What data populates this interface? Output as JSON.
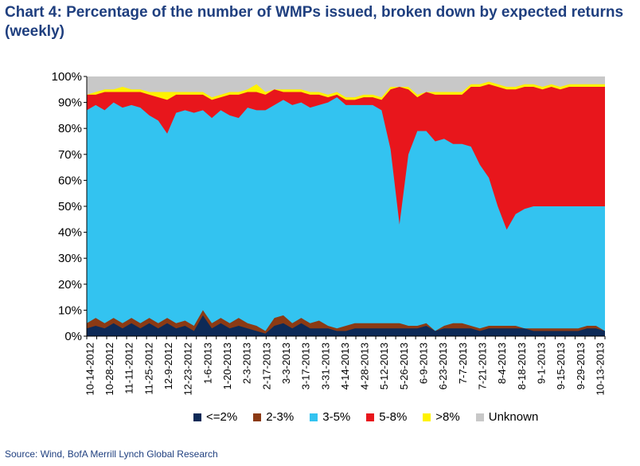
{
  "chart_data": {
    "type": "area",
    "title": "Chart 4: Percentage of the number of WMPs issued, broken down by expected returns (weekly)",
    "source": "Source: Wind, BofA Merrill Lynch Global Research",
    "ylim": [
      0,
      100
    ],
    "y_ticks": [
      "0%",
      "10%",
      "20%",
      "30%",
      "40%",
      "50%",
      "60%",
      "70%",
      "80%",
      "90%",
      "100%"
    ],
    "x_tick_labels": [
      "10-14-2012",
      "10-28-2012",
      "11-11-2012",
      "11-25-2012",
      "12-9-2012",
      "12-23-2012",
      "1-6-2013",
      "1-20-2013",
      "2-3-2013",
      "2-17-2013",
      "3-3-2013",
      "3-17-2013",
      "3-31-2013",
      "4-14-2013",
      "4-28-2013",
      "5-12-2013",
      "5-26-2013",
      "6-9-2013",
      "6-23-2013",
      "7-7-2013",
      "7-21-2013",
      "8-4-2013",
      "8-18-2013",
      "9-1-2013",
      "9-15-2013",
      "9-29-2013",
      "10-13-2013"
    ],
    "stacked_totals": {
      "lte2": [
        3,
        4,
        3,
        5,
        3,
        5,
        3,
        5,
        3,
        5,
        3,
        4,
        2,
        8,
        3,
        5,
        3,
        4,
        3,
        2,
        1,
        4,
        5,
        3,
        5,
        3,
        3,
        3,
        2,
        2,
        3,
        3,
        3,
        3,
        3,
        3,
        3,
        3,
        4,
        2,
        3,
        3,
        3,
        3,
        2,
        3,
        3,
        3,
        3,
        3,
        2,
        2,
        2,
        2,
        2,
        2,
        3,
        3,
        2
      ],
      "lte3": [
        5,
        7,
        5,
        7,
        5,
        7,
        5,
        7,
        5,
        7,
        5,
        6,
        4,
        10,
        5,
        7,
        5,
        7,
        5,
        4,
        2,
        7,
        8,
        5,
        7,
        5,
        6,
        4,
        3,
        4,
        5,
        5,
        5,
        5,
        5,
        5,
        4,
        4,
        5,
        2,
        4,
        5,
        5,
        4,
        3,
        4,
        4,
        4,
        4,
        3,
        3,
        3,
        3,
        3,
        3,
        3,
        4,
        4,
        2
      ],
      "lte5": [
        87,
        89,
        87,
        90,
        88,
        89,
        88,
        85,
        83,
        78,
        86,
        87,
        86,
        87,
        84,
        87,
        85,
        84,
        88,
        87,
        87,
        89,
        91,
        89,
        90,
        88,
        89,
        90,
        92,
        89,
        89,
        89,
        89,
        87,
        72,
        43,
        70,
        79,
        79,
        75,
        76,
        74,
        74,
        73,
        66,
        61,
        50,
        41,
        47,
        49,
        50,
        50,
        50,
        50,
        50,
        50,
        50,
        50,
        50
      ],
      "lte8": [
        93,
        93,
        94,
        94,
        94,
        94,
        94,
        93,
        92,
        91,
        93,
        93,
        93,
        93,
        91,
        92,
        93,
        93,
        94,
        94,
        93,
        95,
        94,
        94,
        94,
        93,
        93,
        92,
        93,
        91,
        91,
        92,
        92,
        91,
        95,
        96,
        95,
        92,
        94,
        93,
        93,
        93,
        93,
        96,
        96,
        97,
        96,
        95,
        95,
        96,
        96,
        95,
        96,
        95,
        96,
        96,
        96,
        96,
        96
      ],
      "lte8plus": [
        93,
        94,
        95,
        95,
        96,
        95,
        95,
        94,
        94,
        94,
        94,
        94,
        94,
        94,
        92,
        93,
        94,
        94,
        95,
        97,
        94,
        95,
        95,
        95,
        95,
        94,
        94,
        93,
        94,
        92,
        92,
        93,
        93,
        92,
        96,
        96,
        96,
        93,
        94,
        94,
        94,
        94,
        94,
        97,
        97,
        98,
        97,
        96,
        96,
        97,
        97,
        96,
        97,
        96,
        97,
        97,
        97,
        97,
        97
      ]
    },
    "series": [
      {
        "name": "<=2%"
      },
      {
        "name": "2-3%"
      },
      {
        "name": "3-5%"
      },
      {
        "name": "5-8%"
      },
      {
        "name": ">8%"
      },
      {
        "name": "Unknown"
      }
    ],
    "colors": {
      "lte2": "#0d2a57",
      "s2_3": "#8b3a14",
      "s3_5": "#33c3f0",
      "s5_8": "#e8161c",
      "gt8": "#fff200",
      "unknown": "#c8c8c8"
    }
  }
}
